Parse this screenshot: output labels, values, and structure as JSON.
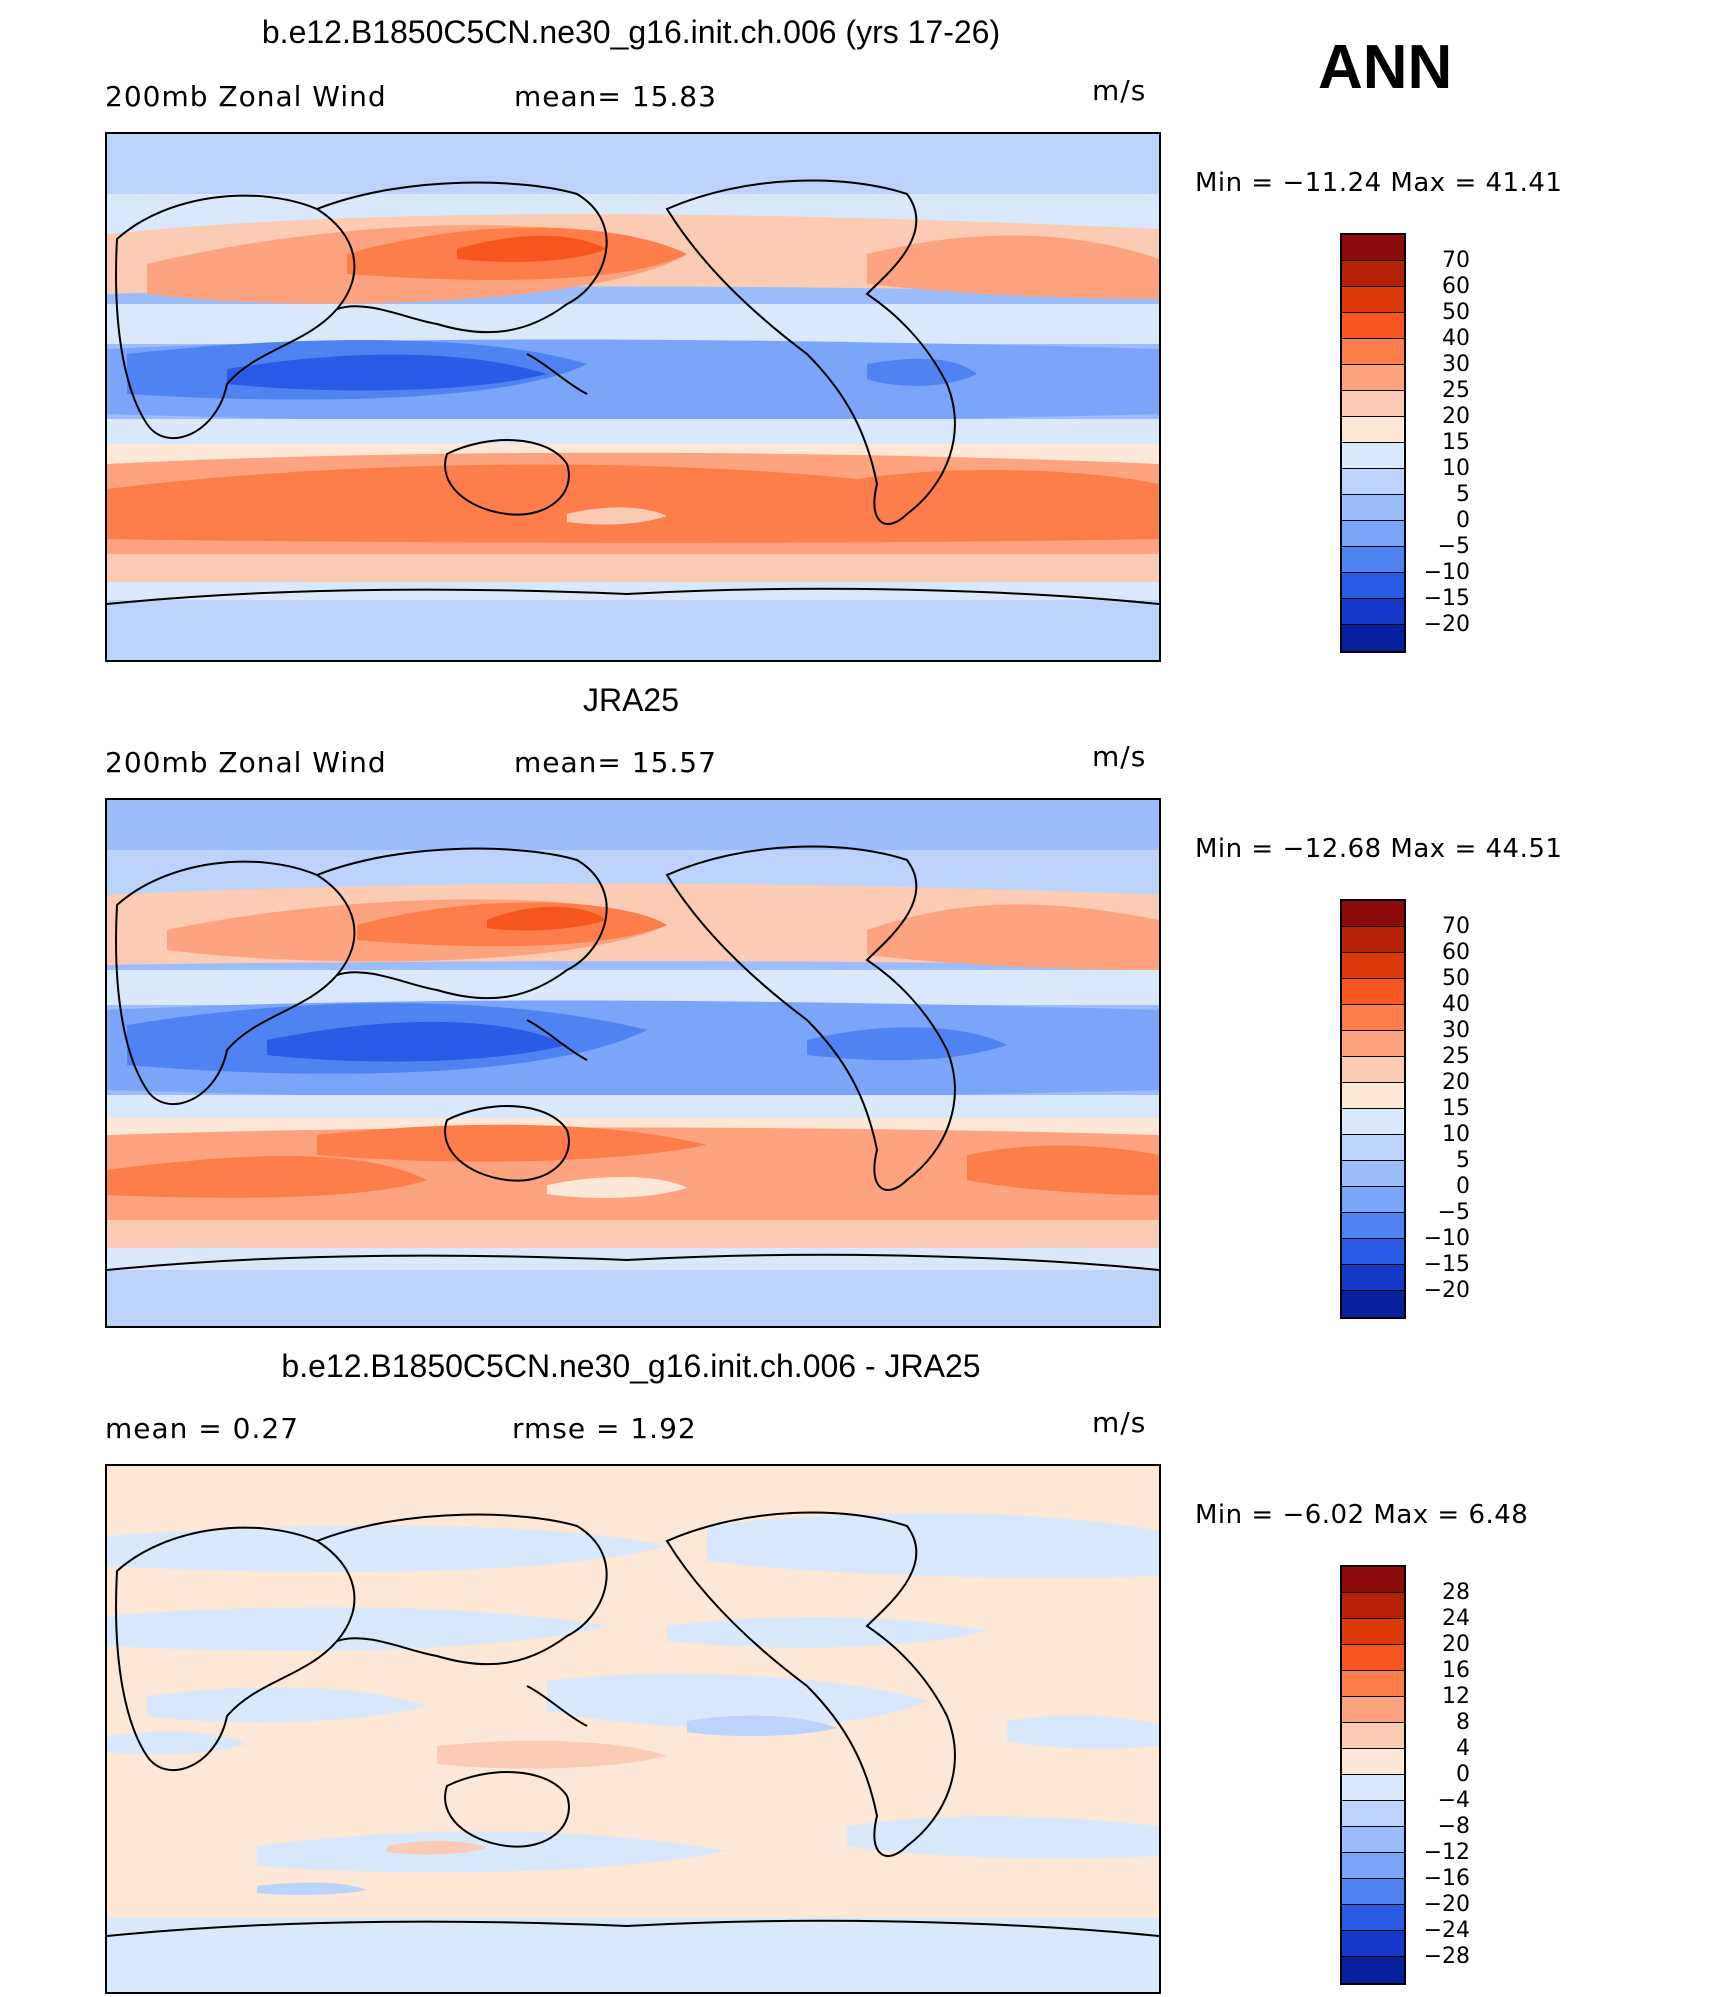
{
  "season": "ANN",
  "panels": [
    {
      "title": "b.e12.B1850C5CN.ne30_g16.init.ch.006 (yrs 17-26)",
      "left_label": "200mb Zonal Wind",
      "center_label": "mean=   15.83",
      "units": "m/s",
      "minmax": "Min = −11.24 Max =   41.41"
    },
    {
      "title": "JRA25",
      "left_label": "200mb Zonal Wind",
      "center_label": "mean=   15.57",
      "units": "m/s",
      "minmax": "Min = −12.68 Max =   44.51"
    },
    {
      "title": "b.e12.B1850C5CN.ne30_g16.init.ch.006 - JRA25",
      "left_label": "mean =    0.27",
      "center_label": "rmse =    1.92",
      "units": "m/s",
      "minmax": "Min =   −6.02 Max =    6.48"
    }
  ],
  "colorbars": {
    "field": {
      "labels": [
        "70",
        "60",
        "50",
        "40",
        "30",
        "25",
        "20",
        "15",
        "10",
        "5",
        "0",
        "−5",
        "−10",
        "−15",
        "−20"
      ],
      "colors": [
        "#8e0b0b",
        "#b52208",
        "#dd3a0a",
        "#f8561f",
        "#fd7e4a",
        "#fda37f",
        "#fccbb4",
        "#fde7d6",
        "#d9e8fb",
        "#bcd3fb",
        "#9bbdfb",
        "#7aa5f9",
        "#4f83f2",
        "#2a5be6",
        "#1439c9",
        "#0620a0"
      ]
    },
    "diff": {
      "labels": [
        "28",
        "24",
        "20",
        "16",
        "12",
        "8",
        "4",
        "0",
        "−4",
        "−8",
        "−12",
        "−16",
        "−20",
        "−24",
        "−28"
      ],
      "colors": [
        "#8e0b0b",
        "#b52208",
        "#dd3a0a",
        "#f8561f",
        "#fd7e4a",
        "#fda37f",
        "#fccbb4",
        "#fde7d6",
        "#d9e8fb",
        "#bcd3fb",
        "#9bbdfb",
        "#7aa5f9",
        "#4f83f2",
        "#2a5be6",
        "#1439c9",
        "#0620a0"
      ]
    }
  }
}
